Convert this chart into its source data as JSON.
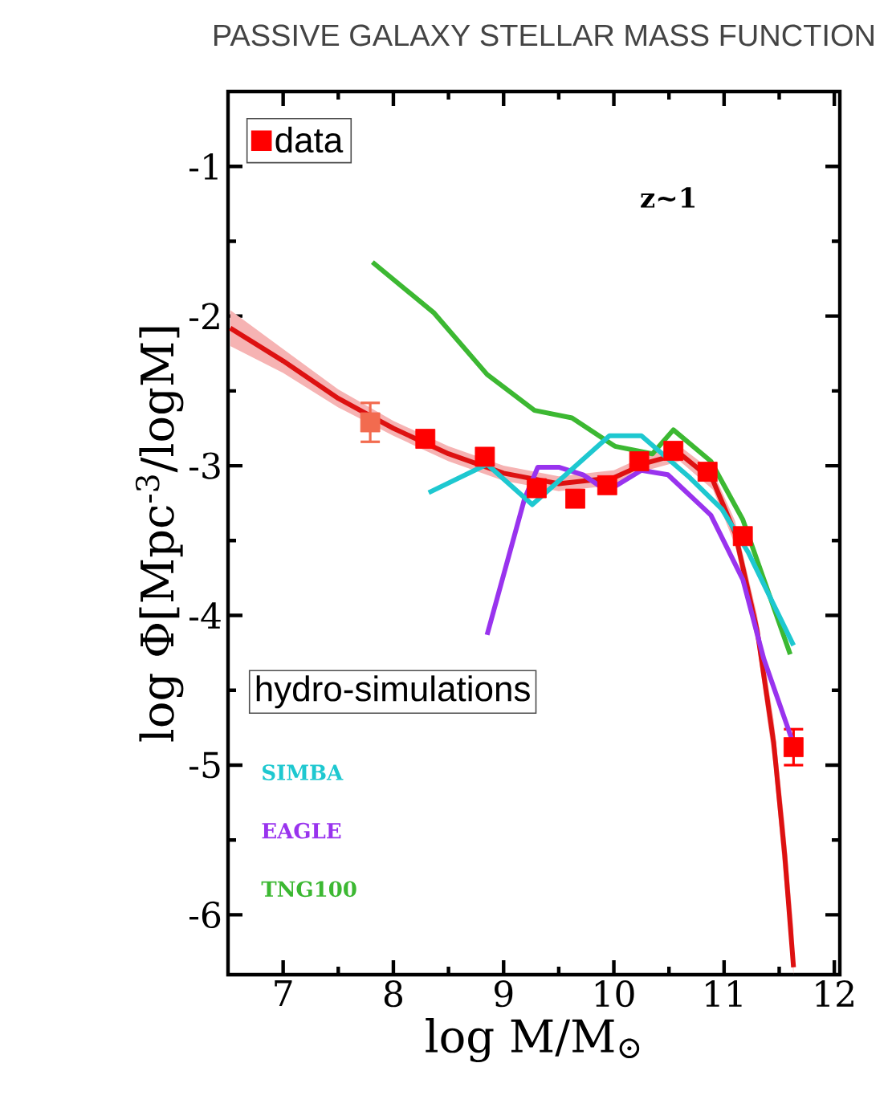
{
  "chart_data": {
    "type": "line",
    "title": "PASSIVE GALAXY STELLAR MASS FUNCTION",
    "xlabel": "log M/M$_{⊙}$",
    "ylabel": "log Φ[Mpc$^{-3}$/logM]",
    "legend_title": "hydro-simulations",
    "annotations": [
      "z~1"
    ],
    "xlim": [
      6.5,
      12.05
    ],
    "ylim": [
      -6.4,
      -0.5
    ],
    "xticks": [
      7,
      8,
      9,
      10,
      11,
      12
    ],
    "yticks": [
      -6,
      -5,
      -4,
      -3,
      -2,
      -1
    ],
    "legend": "top left",
    "series": [
      {
        "color": "#dd1111",
        "x": [
          6.52,
          7.0,
          7.5,
          8.0,
          8.5,
          9.0,
          9.5,
          10.0,
          10.3,
          10.6,
          10.9,
          11.1,
          11.3,
          11.45,
          11.55,
          11.63
        ],
        "values": [
          -2.08,
          -2.3,
          -2.55,
          -2.75,
          -2.92,
          -3.05,
          -3.12,
          -3.08,
          -2.98,
          -2.92,
          -3.1,
          -3.45,
          -4.1,
          -4.85,
          -5.6,
          -6.35
        ],
        "lower": [
          -2.2,
          -2.38,
          -2.61,
          -2.8,
          -2.97,
          -3.1,
          -3.17,
          -3.13,
          -3.03,
          -2.97,
          -3.16,
          -3.53,
          -4.2,
          -5.0,
          -5.8,
          -6.4
        ],
        "upper": [
          -1.96,
          -2.22,
          -2.49,
          -2.7,
          -2.87,
          -3.0,
          -3.07,
          -3.03,
          -2.93,
          -2.87,
          -3.04,
          -3.37,
          -4.0,
          -4.7,
          -5.4,
          -6.1
        ]
      },
      {
        "type": "scatter",
        "name": "data",
        "color": "#ff0000",
        "marker": "square",
        "x": [
          7.79,
          8.29,
          8.83,
          9.3,
          9.65,
          9.94,
          10.23,
          10.54,
          10.85,
          11.17,
          11.63
        ],
        "values": [
          -2.71,
          -2.82,
          -2.94,
          -3.15,
          -3.22,
          -3.13,
          -2.97,
          -2.9,
          -3.04,
          -3.47,
          -4.88
        ],
        "errors": [
          0.13,
          null,
          null,
          null,
          null,
          null,
          null,
          null,
          null,
          null,
          0.12
        ],
        "colors": [
          "#f26b4f",
          "#ff0000",
          "#ff0000",
          "#ff0000",
          "#ff0000",
          "#ff0000",
          "#ff0000",
          "#ff0000",
          "#ff0000",
          "#ff0000",
          "#ff0000"
        ]
      },
      {
        "name": "SIMBA",
        "color": "#1ec8d0",
        "x": [
          8.32,
          8.85,
          9.26,
          9.96,
          10.25,
          10.69,
          10.98,
          11.22,
          11.63
        ],
        "values": [
          -3.18,
          -2.99,
          -3.26,
          -2.8,
          -2.8,
          -3.08,
          -3.29,
          -3.58,
          -4.2
        ]
      },
      {
        "name": "EAGLE",
        "color": "#9933ee",
        "x": [
          8.85,
          9.19,
          9.31,
          9.5,
          9.72,
          9.94,
          10.25,
          10.49,
          10.78,
          10.88,
          11.17,
          11.36,
          11.63
        ],
        "values": [
          -4.13,
          -3.22,
          -3.01,
          -3.01,
          -3.06,
          -3.17,
          -3.03,
          -3.06,
          -3.26,
          -3.33,
          -3.76,
          -4.29,
          -4.86
        ]
      },
      {
        "name": "TNG100",
        "color": "#3cb832",
        "x": [
          7.81,
          8.37,
          8.85,
          9.28,
          9.62,
          10.01,
          10.35,
          10.54,
          10.88,
          11.17,
          11.6
        ],
        "values": [
          -1.64,
          -1.98,
          -2.39,
          -2.63,
          -2.68,
          -2.87,
          -2.92,
          -2.76,
          -2.97,
          -3.36,
          -4.26
        ]
      }
    ]
  }
}
